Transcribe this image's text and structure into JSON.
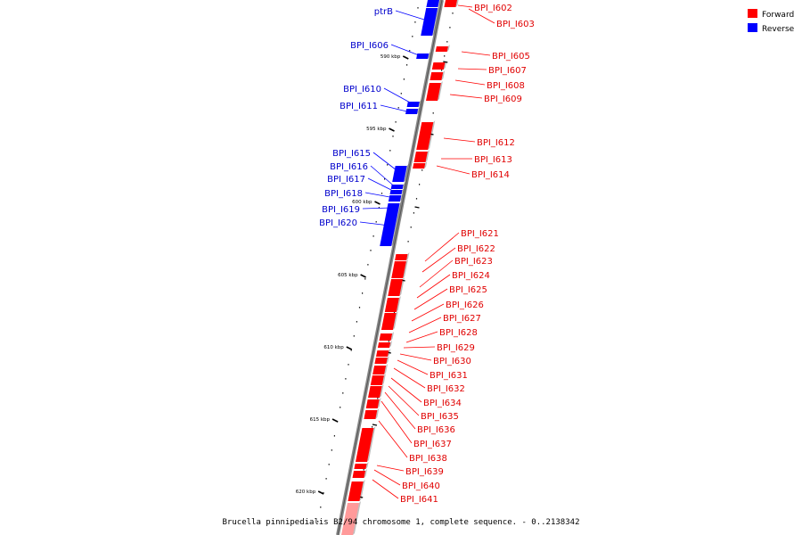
{
  "caption": "Brucella pinnipedialis B2/94 chromosome 1, complete sequence. - 0..2138342",
  "legend": [
    {
      "label": "Forward",
      "color": "#ff0000"
    },
    {
      "label": "Reverse",
      "color": "#0000ff"
    }
  ],
  "colors": {
    "forward": "#ff0000",
    "reverse": "#0000ff",
    "faded": "#ff9a9a",
    "backbone": "#808080"
  },
  "ticks": [
    "590 kbp",
    "595 kbp",
    "600 kbp",
    "605 kbp",
    "610 kbp",
    "615 kbp",
    "620 kbp"
  ],
  "reverse_labels": [
    "ptrB",
    "BPI_I606",
    "BPI_I610",
    "BPI_I611",
    "BPI_I615",
    "BPI_I616",
    "BPI_I617",
    "BPI_I618",
    "BPI_I619",
    "BPI_I620"
  ],
  "forward_labels": [
    "BPI_I602",
    "BPI_I603",
    "BPI_I605",
    "BPI_I607",
    "BPI_I608",
    "BPI_I609",
    "BPI_I612",
    "BPI_I613",
    "BPI_I614",
    "BPI_I621",
    "BPI_I622",
    "BPI_I623",
    "BPI_I624",
    "BPI_I625",
    "BPI_I626",
    "BPI_I627",
    "BPI_I628",
    "BPI_I629",
    "BPI_I630",
    "BPI_I631",
    "BPI_I632",
    "BPI_I634",
    "BPI_I635",
    "BPI_I636",
    "BPI_I637",
    "BPI_I638",
    "BPI_I639",
    "BPI_I640",
    "BPI_I641"
  ]
}
